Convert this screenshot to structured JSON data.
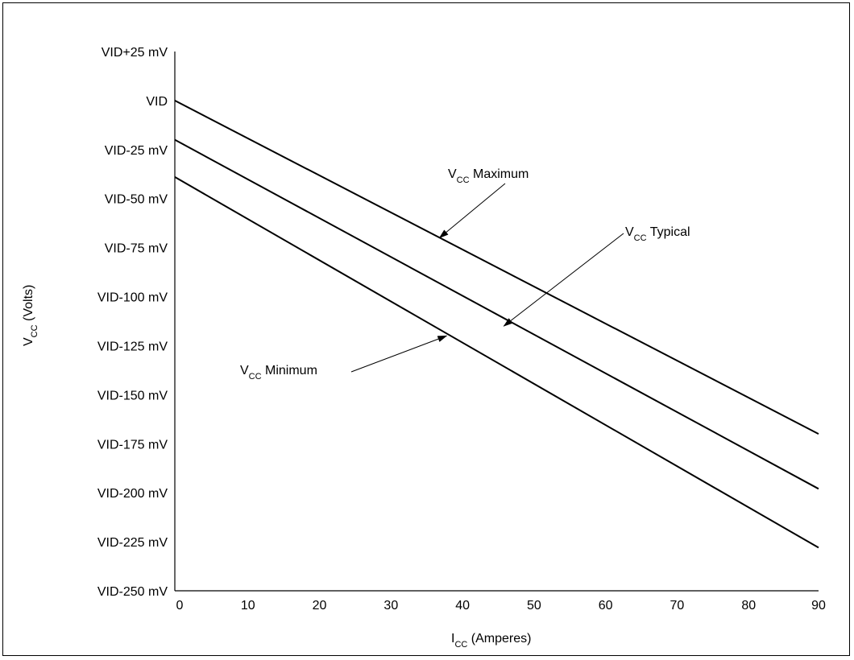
{
  "chart_data": {
    "type": "line",
    "title": "",
    "xlabel": {
      "main": "I",
      "sub": "CC",
      "rest": " (Amperes)"
    },
    "ylabel": {
      "main": "V",
      "sub": "CC",
      "rest": " (Volts)"
    },
    "xlim": [
      0,
      90
    ],
    "ylim": [
      -250,
      25
    ],
    "x_ticks": [
      0,
      10,
      20,
      30,
      40,
      50,
      60,
      70,
      80,
      90
    ],
    "x_tick_labels": [
      "0",
      "10",
      "20",
      "30",
      "40",
      "50",
      "60",
      "70",
      "80",
      "90"
    ],
    "y_ticks": [
      25,
      0,
      -25,
      -50,
      -75,
      -100,
      -125,
      -150,
      -175,
      -200,
      -225,
      -250
    ],
    "y_tick_labels": [
      "VID+25 mV",
      "VID",
      "VID-25 mV",
      "VID-50 mV",
      "VID-75 mV",
      "VID-100 mV",
      "VID-125 mV",
      "VID-150 mV",
      "VID-175 mV",
      "VID-200 mV",
      "VID-225 mV",
      "VID-250 mV"
    ],
    "grid": false,
    "series": [
      {
        "id": "max",
        "x": [
          0,
          90
        ],
        "y": [
          0,
          -170
        ]
      },
      {
        "id": "typ",
        "x": [
          0,
          90
        ],
        "y": [
          -20,
          -198
        ]
      },
      {
        "id": "min",
        "x": [
          0,
          90
        ],
        "y": [
          -39,
          -228
        ]
      }
    ],
    "annotations": [
      {
        "id": "max",
        "main": "V",
        "sub": "CC",
        "rest": " Maximum",
        "target": [
          37,
          -70
        ]
      },
      {
        "id": "typ",
        "main": "V",
        "sub": "CC",
        "rest": " Typical",
        "target": [
          46,
          -115
        ]
      },
      {
        "id": "min",
        "main": "V",
        "sub": "CC",
        "rest": " Minimum",
        "target": [
          38,
          -120
        ]
      }
    ],
    "line_color": "#000000"
  }
}
